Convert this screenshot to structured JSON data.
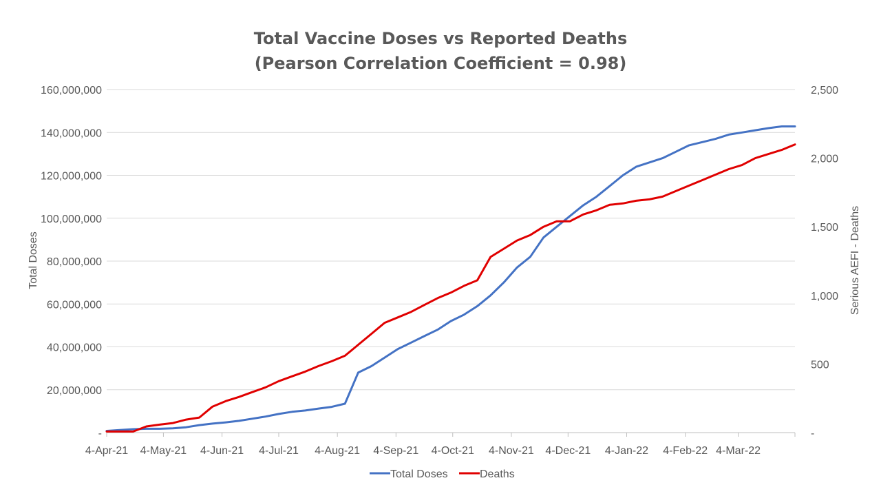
{
  "chart_data": {
    "type": "line",
    "title": "Total Vaccine Doses vs Reported Deaths",
    "subtitle": "(Pearson Correlation Coefficient = 0.98)",
    "y_label_left": "Total Doses",
    "y_label_right": "Serious AEFI - Deaths",
    "y_left_range": [
      0,
      160000000
    ],
    "y_right_range": [
      0,
      2500
    ],
    "y_left_ticks": [
      "-",
      "20,000,000",
      "40,000,000",
      "60,000,000",
      "80,000,000",
      "100,000,000",
      "120,000,000",
      "140,000,000",
      "160,000,000"
    ],
    "y_right_ticks": [
      "-",
      "500",
      "1,000",
      "1,500",
      "2,000",
      "2,500"
    ],
    "x_tick_labels": [
      "4-Apr-21",
      "4-May-21",
      "4-Jun-21",
      "4-Jul-21",
      "4-Aug-21",
      "4-Sep-21",
      "4-Oct-21",
      "4-Nov-21",
      "4-Dec-21",
      "4-Jan-22",
      "4-Feb-22",
      "4-Mar-22"
    ],
    "x_dates": [
      "2021-04-04",
      "2021-04-11",
      "2021-04-18",
      "2021-04-25",
      "2021-05-02",
      "2021-05-09",
      "2021-05-16",
      "2021-05-23",
      "2021-05-30",
      "2021-06-06",
      "2021-06-13",
      "2021-06-20",
      "2021-06-27",
      "2021-07-04",
      "2021-07-11",
      "2021-07-18",
      "2021-07-25",
      "2021-08-01",
      "2021-08-08",
      "2021-08-15",
      "2021-08-22",
      "2021-08-29",
      "2021-09-05",
      "2021-09-12",
      "2021-09-19",
      "2021-09-26",
      "2021-10-03",
      "2021-10-10",
      "2021-10-17",
      "2021-10-24",
      "2021-10-31",
      "2021-11-07",
      "2021-11-14",
      "2021-11-21",
      "2021-11-28",
      "2021-12-05",
      "2021-12-12",
      "2021-12-19",
      "2021-12-26",
      "2022-01-02",
      "2022-01-09",
      "2022-01-16",
      "2022-01-23",
      "2022-01-30",
      "2022-02-06",
      "2022-02-13",
      "2022-02-20",
      "2022-02-27",
      "2022-03-06",
      "2022-03-13",
      "2022-03-20",
      "2022-03-27",
      "2022-04-03"
    ],
    "series": [
      {
        "name": "Total Doses",
        "axis": "left",
        "color": "#4472C4",
        "values": [
          800000,
          1200000,
          1600000,
          1800000,
          1800000,
          2000000,
          2500000,
          3500000,
          4200000,
          4800000,
          5500000,
          6500000,
          7500000,
          8700000,
          9700000,
          10300000,
          11200000,
          12000000,
          13500000,
          28000000,
          31000000,
          35000000,
          39000000,
          42000000,
          45000000,
          48000000,
          52000000,
          55000000,
          59000000,
          64000000,
          70000000,
          77000000,
          82000000,
          91000000,
          96000000,
          101000000,
          106000000,
          110000000,
          115000000,
          120000000,
          124000000,
          126000000,
          128000000,
          131000000,
          134000000,
          135500000,
          137000000,
          139000000,
          140000000,
          141000000,
          142000000,
          142800000,
          142800000
        ]
      },
      {
        "name": "Deaths",
        "axis": "right",
        "color": "#E00000",
        "values": [
          8,
          8,
          8,
          45,
          58,
          70,
          95,
          110,
          190,
          230,
          260,
          295,
          330,
          375,
          410,
          445,
          485,
          520,
          560,
          640,
          720,
          800,
          840,
          880,
          930,
          980,
          1020,
          1070,
          1110,
          1280,
          1340,
          1400,
          1440,
          1500,
          1540,
          1540,
          1590,
          1620,
          1660,
          1670,
          1690,
          1700,
          1720,
          1760,
          1800,
          1840,
          1880,
          1920,
          1950,
          2000,
          2030,
          2060,
          2100
        ]
      }
    ],
    "legend_position": "bottom",
    "grid": true
  }
}
